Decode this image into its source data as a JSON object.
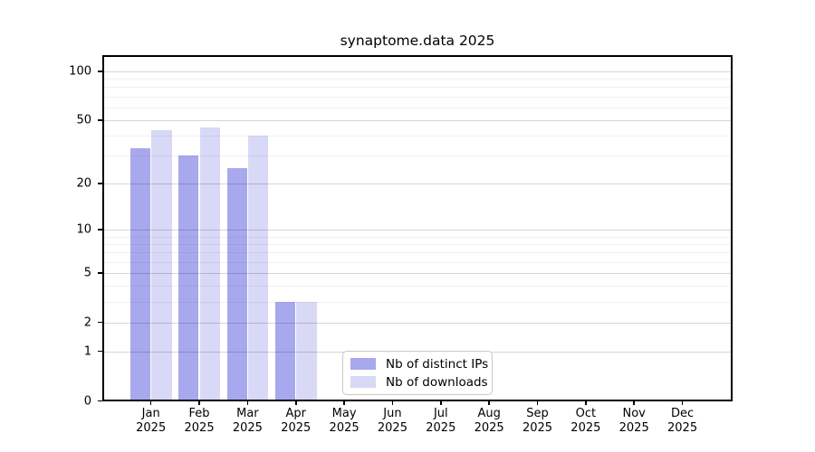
{
  "chart_data": {
    "type": "bar",
    "title": "synaptome.data 2025",
    "year_label": "2025",
    "categories": [
      "Jan",
      "Feb",
      "Mar",
      "Apr",
      "May",
      "Jun",
      "Jul",
      "Aug",
      "Sep",
      "Oct",
      "Nov",
      "Dec"
    ],
    "series": [
      {
        "name": "Nb of distinct IPs",
        "color": "#a8a8ee",
        "values": [
          33,
          30,
          25,
          3,
          0,
          0,
          0,
          0,
          0,
          0,
          0,
          0
        ]
      },
      {
        "name": "Nb of downloads",
        "color": "#d8d8f7",
        "values": [
          43,
          45,
          40,
          3,
          0,
          0,
          0,
          0,
          0,
          0,
          0,
          0
        ]
      }
    ],
    "xlabel": "",
    "ylabel": "",
    "y_scale": "log1p",
    "y_ticks": [
      0,
      1,
      2,
      5,
      10,
      20,
      50,
      100
    ],
    "y_minor_gridlines": [
      3,
      4,
      6,
      7,
      8,
      9,
      30,
      40,
      60,
      70,
      80,
      90
    ],
    "ylim": [
      0,
      128
    ],
    "grid": true,
    "legend_position": "lower center"
  }
}
